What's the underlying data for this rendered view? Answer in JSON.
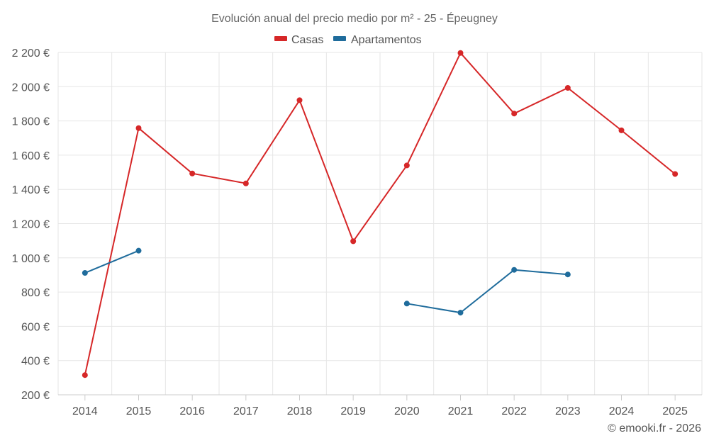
{
  "chart_data": {
    "type": "line",
    "title": "Evolución anual del precio medio por m² - 25 - Épeugney",
    "categories": [
      "2014",
      "2015",
      "2016",
      "2017",
      "2018",
      "2019",
      "2020",
      "2021",
      "2022",
      "2023",
      "2024",
      "2025"
    ],
    "series": [
      {
        "name": "Casas",
        "color": "#d62728",
        "values": [
          315,
          1758,
          1493,
          1435,
          1921,
          1097,
          1540,
          2197,
          1843,
          1993,
          1745,
          1490
        ]
      },
      {
        "name": "Apartamentos",
        "color": "#1f6c9c",
        "values": [
          912,
          1042,
          null,
          null,
          null,
          null,
          733,
          680,
          930,
          903,
          null,
          null
        ]
      }
    ],
    "yticks": [
      200,
      400,
      600,
      800,
      1000,
      1200,
      1400,
      1600,
      1800,
      2000,
      2200
    ],
    "ytick_labels": [
      "200 €",
      "400 €",
      "600 €",
      "800 €",
      "1 000 €",
      "1 200 €",
      "1 400 €",
      "1 600 €",
      "1 800 €",
      "2 000 €",
      "2 200 €"
    ],
    "ylim": [
      200,
      2200
    ],
    "grid": true,
    "legend": "top-center",
    "credit": "© emooki.fr - 2026"
  }
}
